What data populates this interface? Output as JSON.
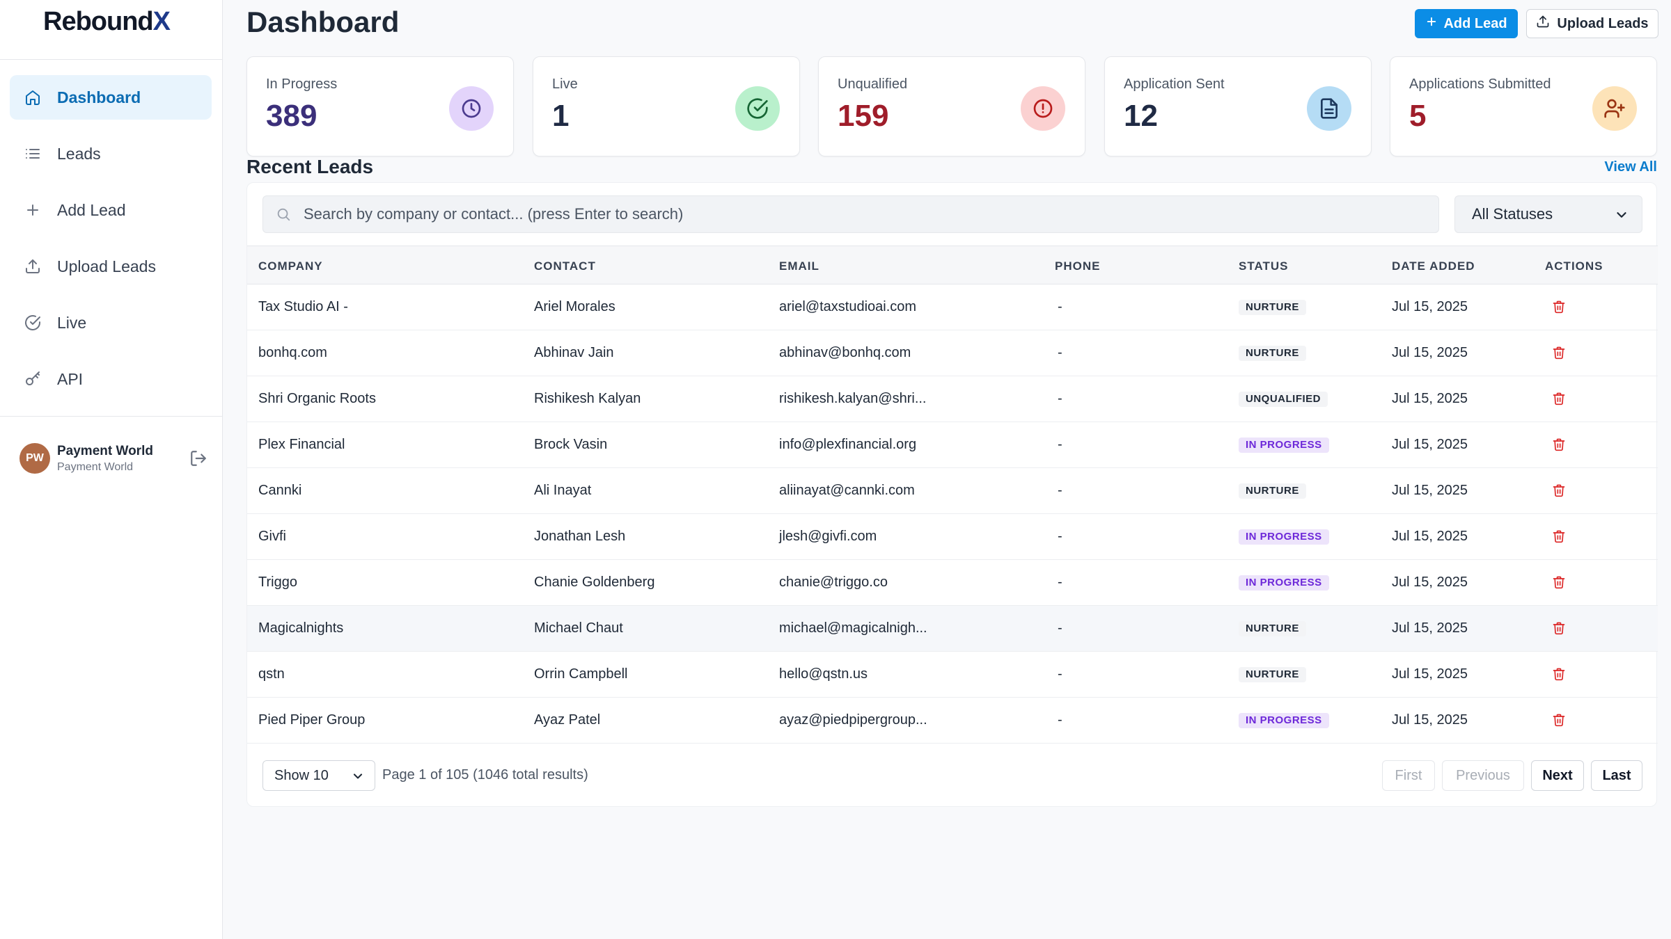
{
  "app": {
    "logo_main": "Rebound",
    "logo_accent": "X"
  },
  "sidebar": {
    "items": [
      {
        "label": "Dashboard",
        "icon": "home-icon"
      },
      {
        "label": "Leads",
        "icon": "list-icon"
      },
      {
        "label": "Add Lead",
        "icon": "plus-icon"
      },
      {
        "label": "Upload Leads",
        "icon": "upload-icon"
      },
      {
        "label": "Live",
        "icon": "check-circle-icon"
      },
      {
        "label": "API",
        "icon": "key-icon"
      }
    ],
    "active_item": "Dashboard",
    "user": {
      "initials": "PW",
      "name": "Payment World",
      "subtitle": "Payment World"
    }
  },
  "header": {
    "title": "Dashboard",
    "add_lead_label": "Add Lead",
    "upload_leads_label": "Upload Leads"
  },
  "stats": [
    {
      "label": "In Progress",
      "value": "389",
      "value_color": "#3b2f7a",
      "icon": "clock-icon",
      "icon_bg": "#e3d4fb",
      "icon_color": "#4c3b8f"
    },
    {
      "label": "Live",
      "value": "1",
      "value_color": "#1f2a44",
      "icon": "check-circle-icon",
      "icon_bg": "#b9f0cc",
      "icon_color": "#166534"
    },
    {
      "label": "Unqualified",
      "value": "159",
      "value_color": "#9f1d2a",
      "icon": "alert-circle-icon",
      "icon_bg": "#fbd1d1",
      "icon_color": "#b91c1c"
    },
    {
      "label": "Application Sent",
      "value": "12",
      "value_color": "#1f2a44",
      "icon": "document-icon",
      "icon_bg": "#b5dcf5",
      "icon_color": "#1e3a5f"
    },
    {
      "label": "Applications Submitted",
      "value": "5",
      "value_color": "#9f1d2a",
      "icon": "user-plus-icon",
      "icon_bg": "#fde3b8",
      "icon_color": "#9a3412"
    }
  ],
  "recent_leads": {
    "title": "Recent Leads",
    "view_all": "View All",
    "search_placeholder": "Search by company or contact... (press Enter to search)",
    "status_filter": "All Statuses",
    "columns": [
      "COMPANY",
      "CONTACT",
      "EMAIL",
      "PHONE",
      "STATUS",
      "DATE ADDED",
      "ACTIONS"
    ],
    "rows": [
      {
        "company": "Tax Studio AI -",
        "contact": "Ariel Morales",
        "email": "ariel@taxstudioai.com",
        "phone": "-",
        "status": "NURTURE",
        "date": "Jul 15, 2025"
      },
      {
        "company": "bonhq.com",
        "contact": "Abhinav Jain",
        "email": "abhinav@bonhq.com",
        "phone": "-",
        "status": "NURTURE",
        "date": "Jul 15, 2025"
      },
      {
        "company": "Shri Organic Roots",
        "contact": "Rishikesh Kalyan",
        "email": "rishikesh.kalyan@shri...",
        "phone": "-",
        "status": "UNQUALIFIED",
        "date": "Jul 15, 2025"
      },
      {
        "company": "Plex Financial",
        "contact": "Brock Vasin",
        "email": "info@plexfinancial.org",
        "phone": "-",
        "status": "IN PROGRESS",
        "date": "Jul 15, 2025"
      },
      {
        "company": "Cannki",
        "contact": "Ali Inayat",
        "email": "aliinayat@cannki.com",
        "phone": "-",
        "status": "NURTURE",
        "date": "Jul 15, 2025"
      },
      {
        "company": "Givfi",
        "contact": "Jonathan Lesh",
        "email": "jlesh@givfi.com",
        "phone": "-",
        "status": "IN PROGRESS",
        "date": "Jul 15, 2025"
      },
      {
        "company": "Triggo",
        "contact": "Chanie Goldenberg",
        "email": "chanie@triggo.co",
        "phone": "-",
        "status": "IN PROGRESS",
        "date": "Jul 15, 2025"
      },
      {
        "company": "Magicalnights",
        "contact": "Michael Chaut",
        "email": "michael@magicalnigh...",
        "phone": "-",
        "status": "NURTURE",
        "date": "Jul 15, 2025"
      },
      {
        "company": "qstn",
        "contact": "Orrin Campbell",
        "email": "hello@qstn.us",
        "phone": "-",
        "status": "NURTURE",
        "date": "Jul 15, 2025"
      },
      {
        "company": "Pied Piper Group",
        "contact": "Ayaz Patel",
        "email": "ayaz@piedpipergroup...",
        "phone": "-",
        "status": "IN PROGRESS",
        "date": "Jul 15, 2025"
      }
    ],
    "highlighted_row": "Magicalnights"
  },
  "pagination": {
    "page_size": "Show 10",
    "info": "Page 1 of 105 (1046 total results)",
    "first": "First",
    "previous": "Previous",
    "next": "Next",
    "last": "Last"
  }
}
